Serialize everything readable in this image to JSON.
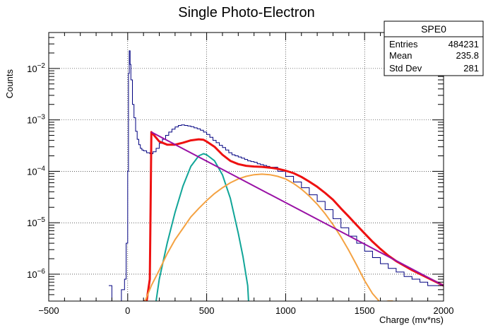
{
  "chart_data": {
    "type": "line",
    "title": "Single Photo-Electron",
    "xlabel": "Charge (mv*ns)",
    "ylabel": "Counts",
    "xlim": [
      -500,
      2000
    ],
    "ylim": [
      3e-07,
      0.05
    ],
    "yscale": "log",
    "grid": true,
    "x_ticks": [
      -500,
      0,
      500,
      1000,
      1500,
      2000
    ],
    "y_ticks": [
      {
        "value": 1e-06,
        "base": "10",
        "exp": "-6"
      },
      {
        "value": 1e-05,
        "base": "10",
        "exp": "-5"
      },
      {
        "value": 0.0001,
        "base": "10",
        "exp": "-4"
      },
      {
        "value": 0.001,
        "base": "10",
        "exp": "-3"
      },
      {
        "value": 0.01,
        "base": "10",
        "exp": "-2"
      }
    ],
    "stats_box": {
      "title": "SPE0",
      "placement": "top-right",
      "rows": [
        {
          "label": "Entries",
          "value": "484231"
        },
        {
          "label": "Mean",
          "value": "235.8"
        },
        {
          "label": "Std Dev",
          "value": "281"
        }
      ]
    },
    "series": [
      {
        "kind": "histogram",
        "color": "#000080",
        "x": [
          -120,
          -100,
          -80,
          -60,
          -40,
          -20,
          -10,
          0,
          5,
          10,
          15,
          20,
          30,
          40,
          50,
          60,
          70,
          80,
          90,
          100,
          120,
          140,
          160,
          180,
          200,
          220,
          240,
          260,
          280,
          300,
          320,
          340,
          360,
          380,
          400,
          420,
          440,
          460,
          480,
          500,
          520,
          540,
          560,
          580,
          600,
          620,
          640,
          660,
          680,
          700,
          720,
          740,
          760,
          780,
          800,
          820,
          840,
          860,
          880,
          900,
          950,
          1000,
          1050,
          1100,
          1150,
          1200,
          1250,
          1300,
          1350,
          1400,
          1450,
          1500,
          1550,
          1600,
          1650,
          1700,
          1750,
          1800,
          1850,
          1900,
          1950,
          2000
        ],
        "y": [
          6e-07,
          3e-07,
          3e-07,
          3e-07,
          5e-07,
          8e-07,
          4e-06,
          0.0001,
          0.008,
          0.022,
          0.012,
          0.006,
          0.002,
          0.0011,
          0.0006,
          0.00042,
          0.00033,
          0.00028,
          0.00026,
          0.00025,
          0.00023,
          0.00022,
          0.00024,
          0.00028,
          0.00035,
          0.00042,
          0.0005,
          0.00058,
          0.00066,
          0.00073,
          0.00078,
          0.0008,
          0.00078,
          0.00076,
          0.00074,
          0.0007,
          0.00067,
          0.00063,
          0.00058,
          0.00052,
          0.00046,
          0.0004,
          0.00036,
          0.00032,
          0.00029,
          0.00026,
          0.00023,
          0.00021,
          0.0002,
          0.00019,
          0.00018,
          0.00017,
          0.00016,
          0.000155,
          0.00015,
          0.00014,
          0.000135,
          0.00013,
          0.000125,
          0.00012,
          0.0001,
          8e-05,
          6.2e-05,
          4.8e-05,
          3.5e-05,
          2.6e-05,
          1.8e-05,
          1.2e-05,
          8e-06,
          5.5e-06,
          4e-06,
          2.8e-06,
          2.1e-06,
          1.6e-06,
          1.3e-06,
          1.1e-06,
          9e-07,
          8e-07,
          7e-07,
          6e-07,
          6e-07,
          6e-07
        ]
      },
      {
        "kind": "fit-total",
        "color": "#ee1111",
        "x": [
          100,
          120,
          140,
          145,
          150,
          200,
          250,
          300,
          350,
          400,
          450,
          480,
          500,
          550,
          600,
          650,
          700,
          750,
          800,
          850,
          900,
          950,
          1000,
          1050,
          1100,
          1150,
          1200,
          1250,
          1300,
          1350,
          1400,
          1450,
          1500,
          1550,
          1600,
          1650,
          1700,
          1800,
          1900,
          2000
        ],
        "y": [
          3e-07,
          3e-07,
          8e-07,
          2e-05,
          0.00058,
          0.00038,
          0.00033,
          0.00033,
          0.00036,
          0.0004,
          0.00042,
          0.00041,
          0.00038,
          0.0003,
          0.00021,
          0.00016,
          0.000138,
          0.000128,
          0.000124,
          0.000122,
          0.000118,
          0.000112,
          0.000103,
          9.2e-05,
          7.8e-05,
          6.3e-05,
          5e-05,
          3.8e-05,
          2.8e-05,
          1.9e-05,
          1.32e-05,
          9e-06,
          6.2e-06,
          4.3e-06,
          3.1e-06,
          2.3e-06,
          1.8e-06,
          1.2e-06,
          8.5e-07,
          6e-07
        ]
      },
      {
        "kind": "fit-gaussian",
        "color": "#11a598",
        "x": [
          180,
          200,
          250,
          300,
          350,
          400,
          450,
          480,
          500,
          550,
          600,
          650,
          700,
          730,
          760,
          765
        ],
        "y": [
          3e-07,
          8e-07,
          4e-06,
          1.6e-05,
          5.2e-05,
          0.000125,
          0.0002,
          0.00022,
          0.00021,
          0.00016,
          8.5e-05,
          3e-05,
          6.3e-06,
          2.2e-06,
          6e-07,
          3e-07
        ]
      },
      {
        "kind": "fit-secondary",
        "color": "#f4a242",
        "x": [
          110,
          150,
          200,
          250,
          300,
          350,
          400,
          450,
          500,
          550,
          600,
          650,
          700,
          750,
          800,
          850,
          900,
          950,
          1000,
          1050,
          1100,
          1150,
          1200,
          1250,
          1300,
          1350,
          1400,
          1450,
          1500,
          1550,
          1600,
          1650,
          1680
        ],
        "y": [
          3e-07,
          6e-07,
          1.2e-06,
          2.5e-06,
          4.7e-06,
          7.8e-06,
          1.3e-05,
          1.9e-05,
          2.7e-05,
          3.7e-05,
          4.8e-05,
          6e-05,
          7.1e-05,
          8e-05,
          8.6e-05,
          8.8e-05,
          8.6e-05,
          8e-05,
          7.1e-05,
          5.8e-05,
          4.5e-05,
          3.3e-05,
          2.3e-05,
          1.5e-05,
          9.2e-06,
          5.3e-06,
          2.9e-06,
          1.5e-06,
          7.5e-07,
          4.2e-07,
          2.8e-07,
          3e-07,
          3e-07
        ]
      },
      {
        "kind": "fit-background",
        "color": "#9911a5",
        "x": [
          150,
          2000
        ],
        "y": [
          0.00058,
          6e-07
        ]
      }
    ]
  }
}
